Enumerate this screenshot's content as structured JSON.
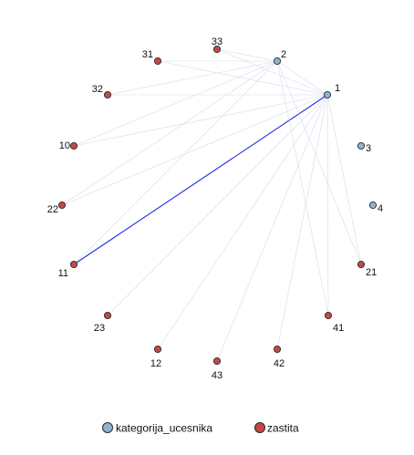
{
  "legend": [
    {
      "label": "kategorija_ucesnika",
      "color": "#8fb4d0"
    },
    {
      "label": "zastita",
      "color": "#c44848"
    }
  ],
  "colors": {
    "node_stroke": "#2b2b2b",
    "edge_faint": "#c9cde8",
    "edge_strong": "#1f2ee6"
  },
  "nodes": [
    {
      "id": "33",
      "group": 1
    },
    {
      "id": "2",
      "group": 0
    },
    {
      "id": "1",
      "group": 0
    },
    {
      "id": "3",
      "group": 0
    },
    {
      "id": "4",
      "group": 0
    },
    {
      "id": "21",
      "group": 1
    },
    {
      "id": "41",
      "group": 1
    },
    {
      "id": "42",
      "group": 1
    },
    {
      "id": "43",
      "group": 1
    },
    {
      "id": "12",
      "group": 1
    },
    {
      "id": "23",
      "group": 1
    },
    {
      "id": "11",
      "group": 1
    },
    {
      "id": "22",
      "group": 1
    },
    {
      "id": "10",
      "group": 1
    },
    {
      "id": "32",
      "group": 1
    },
    {
      "id": "31",
      "group": 1
    }
  ],
  "edges": [
    {
      "source": "1",
      "target": "11",
      "strength": "strong"
    },
    {
      "source": "1",
      "target": "2",
      "strength": "faint"
    },
    {
      "source": "1",
      "target": "21",
      "strength": "faint"
    },
    {
      "source": "1",
      "target": "41",
      "strength": "faint"
    },
    {
      "source": "1",
      "target": "42",
      "strength": "faint"
    },
    {
      "source": "1",
      "target": "43",
      "strength": "faint"
    },
    {
      "source": "1",
      "target": "12",
      "strength": "faint"
    },
    {
      "source": "1",
      "target": "23",
      "strength": "faint"
    },
    {
      "source": "1",
      "target": "22",
      "strength": "faint"
    },
    {
      "source": "1",
      "target": "10",
      "strength": "faint"
    },
    {
      "source": "1",
      "target": "32",
      "strength": "faint"
    },
    {
      "source": "1",
      "target": "31",
      "strength": "faint"
    },
    {
      "source": "1",
      "target": "33",
      "strength": "faint"
    },
    {
      "source": "2",
      "target": "11",
      "strength": "faint"
    },
    {
      "source": "2",
      "target": "22",
      "strength": "faint"
    },
    {
      "source": "2",
      "target": "32",
      "strength": "faint"
    },
    {
      "source": "2",
      "target": "31",
      "strength": "faint"
    },
    {
      "source": "2",
      "target": "33",
      "strength": "faint"
    },
    {
      "source": "2",
      "target": "10",
      "strength": "faint"
    },
    {
      "source": "2",
      "target": "21",
      "strength": "faint"
    },
    {
      "source": "2",
      "target": "41",
      "strength": "faint"
    }
  ]
}
